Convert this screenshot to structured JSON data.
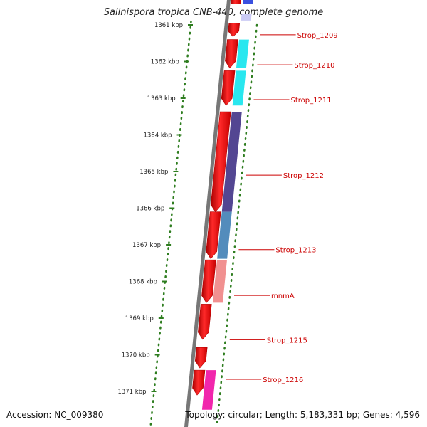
{
  "title": "Salinispora tropica CNB-440, complete genome",
  "footer": {
    "accession": "Accession: NC_009380",
    "summary": "Topology: circular; Length: 5,183,331 bp; Genes: 4,596"
  },
  "colors": {
    "backbone": "#777777",
    "ruler_ticks": "#2e7d1f",
    "label_text": "#cc0000",
    "gene_red": "#ee0000",
    "cyan": "#1ee6ee",
    "navy": "#4a3c8c",
    "steelblue": "#4a86b8",
    "salmon": "#f08a8a",
    "magenta": "#f01aa8",
    "blue": "#3a50e0",
    "lavender": "#c8c8f4"
  },
  "chart_data": {
    "type": "genome_map",
    "unit": "kbp",
    "scale_ticks": [
      {
        "kbp": 1361,
        "label": "1361 kbp"
      },
      {
        "kbp": 1362,
        "label": "1362 kbp"
      },
      {
        "kbp": 1363,
        "label": "1363 kbp"
      },
      {
        "kbp": 1364,
        "label": "1364 kbp"
      },
      {
        "kbp": 1365,
        "label": "1365 kbp"
      },
      {
        "kbp": 1366,
        "label": "1366 kbp"
      },
      {
        "kbp": 1367,
        "label": "1367 kbp"
      },
      {
        "kbp": 1368,
        "label": "1368 kbp"
      },
      {
        "kbp": 1369,
        "label": "1369 kbp"
      },
      {
        "kbp": 1370,
        "label": "1370 kbp"
      },
      {
        "kbp": 1371,
        "label": "1371 kbp"
      }
    ],
    "genes": [
      {
        "name": "Strop_1209",
        "start": 1360.95,
        "end": 1361.32,
        "label_at": 1361.27
      },
      {
        "name": "Strop_1210",
        "start": 1361.4,
        "end": 1362.18,
        "label_at": 1362.09
      },
      {
        "name": "Strop_1211",
        "start": 1362.25,
        "end": 1363.2,
        "label_at": 1363.04
      },
      {
        "name": "Strop_1212",
        "start": 1363.37,
        "end": 1366.1,
        "label_at": 1365.1
      },
      {
        "name": "Strop_1213",
        "start": 1366.1,
        "end": 1367.38,
        "label_at": 1367.13
      },
      {
        "name": "mnmA",
        "start": 1367.41,
        "end": 1368.58,
        "label_at": 1368.38
      },
      {
        "name": "Strop_1215",
        "start": 1368.62,
        "end": 1369.58,
        "label_at": 1369.59
      },
      {
        "name": "Strop_1216",
        "start": 1369.8,
        "end": 1370.36,
        "label_at": 1370.67
      },
      {
        "name": "",
        "start": 1370.42,
        "end": 1371.1
      }
    ],
    "cog_blocks": [
      {
        "start": 1360.7,
        "end": 1360.88,
        "color_key": "lavender"
      },
      {
        "start": 1361.4,
        "end": 1362.18,
        "color_key": "cyan"
      },
      {
        "start": 1362.25,
        "end": 1363.2,
        "color_key": "cyan"
      },
      {
        "start": 1363.37,
        "end": 1366.1,
        "color_key": "navy"
      },
      {
        "start": 1366.1,
        "end": 1367.38,
        "color_key": "steelblue"
      },
      {
        "start": 1367.41,
        "end": 1368.58,
        "color_key": "salmon"
      },
      {
        "start": 1370.42,
        "end": 1371.5,
        "color_key": "magenta"
      }
    ]
  }
}
